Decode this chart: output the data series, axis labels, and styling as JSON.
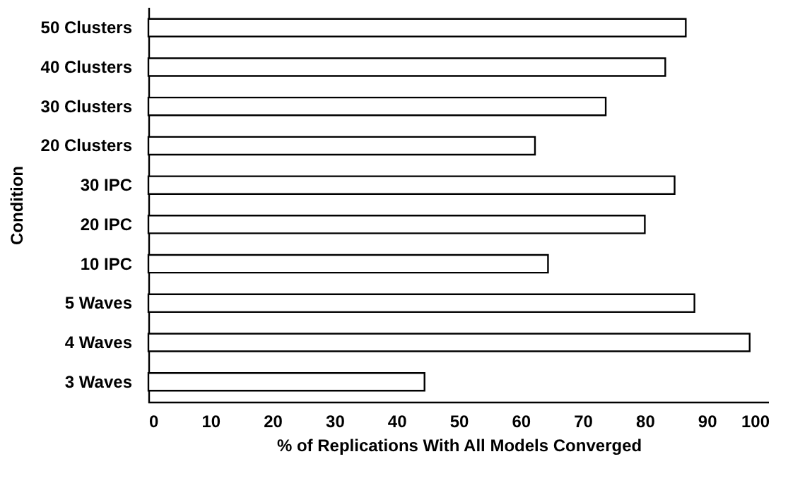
{
  "chart_data": {
    "type": "bar",
    "orientation": "horizontal",
    "xlabel": "% of Replications With All Models Converged",
    "ylabel": "Condition",
    "categories": [
      "50 Clusters",
      "40 Clusters",
      "30 Clusters",
      "20 Clusters",
      "30 IPC",
      "20 IPC",
      "10 IPC",
      "5 Waves",
      "4 Waves",
      "3 Waves"
    ],
    "values": [
      86.6,
      83.3,
      73.7,
      62.3,
      84.8,
      80.0,
      64.4,
      88.0,
      96.9,
      44.5
    ],
    "color": "#ffffff",
    "xlim": [
      0,
      100
    ],
    "xticks": [
      0,
      10,
      20,
      30,
      40,
      50,
      60,
      70,
      80,
      90,
      100
    ]
  }
}
